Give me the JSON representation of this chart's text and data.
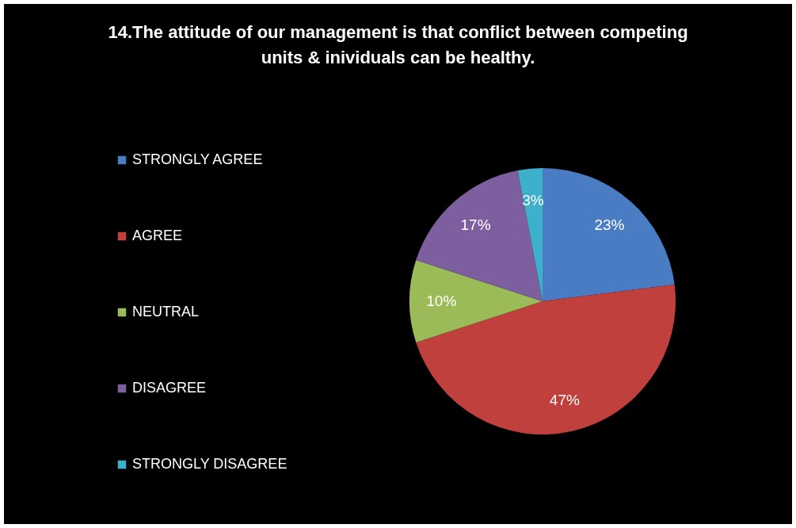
{
  "chart_data": {
    "type": "pie",
    "title": "14.The attitude of our management is that conflict between competing units & inividuals can be  healthy.",
    "categories": [
      "STRONGLY AGREE",
      "AGREE",
      "NEUTRAL",
      "DISAGREE",
      "STRONGLY DISAGREE"
    ],
    "values": [
      23,
      47,
      10,
      17,
      3
    ],
    "value_labels": [
      "23%",
      "47%",
      "10%",
      "17%",
      "3%"
    ],
    "colors": [
      "#4a7cc4",
      "#c0403d",
      "#9bbb59",
      "#7d5fa0",
      "#3fb0cc"
    ],
    "legend": "left"
  }
}
